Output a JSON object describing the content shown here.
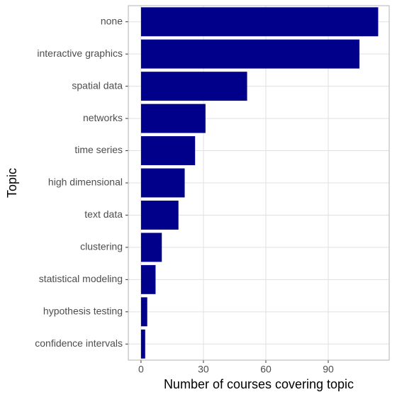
{
  "chart_data": {
    "type": "hbar",
    "x_label": "Number of courses covering topic",
    "y_label": "Topic",
    "categories": [
      "none",
      "interactive graphics",
      "spatial data",
      "networks",
      "time series",
      "high dimensional",
      "text data",
      "clustering",
      "statistical modeling",
      "hypothesis testing",
      "confidence intervals"
    ],
    "values": [
      114,
      105,
      51,
      31,
      26,
      21,
      18,
      10,
      7,
      3,
      2
    ],
    "color": "#00008b",
    "xlim": [
      -6.1,
      119.3
    ],
    "xticks": [
      0,
      30,
      60,
      90
    ],
    "grid": true
  }
}
